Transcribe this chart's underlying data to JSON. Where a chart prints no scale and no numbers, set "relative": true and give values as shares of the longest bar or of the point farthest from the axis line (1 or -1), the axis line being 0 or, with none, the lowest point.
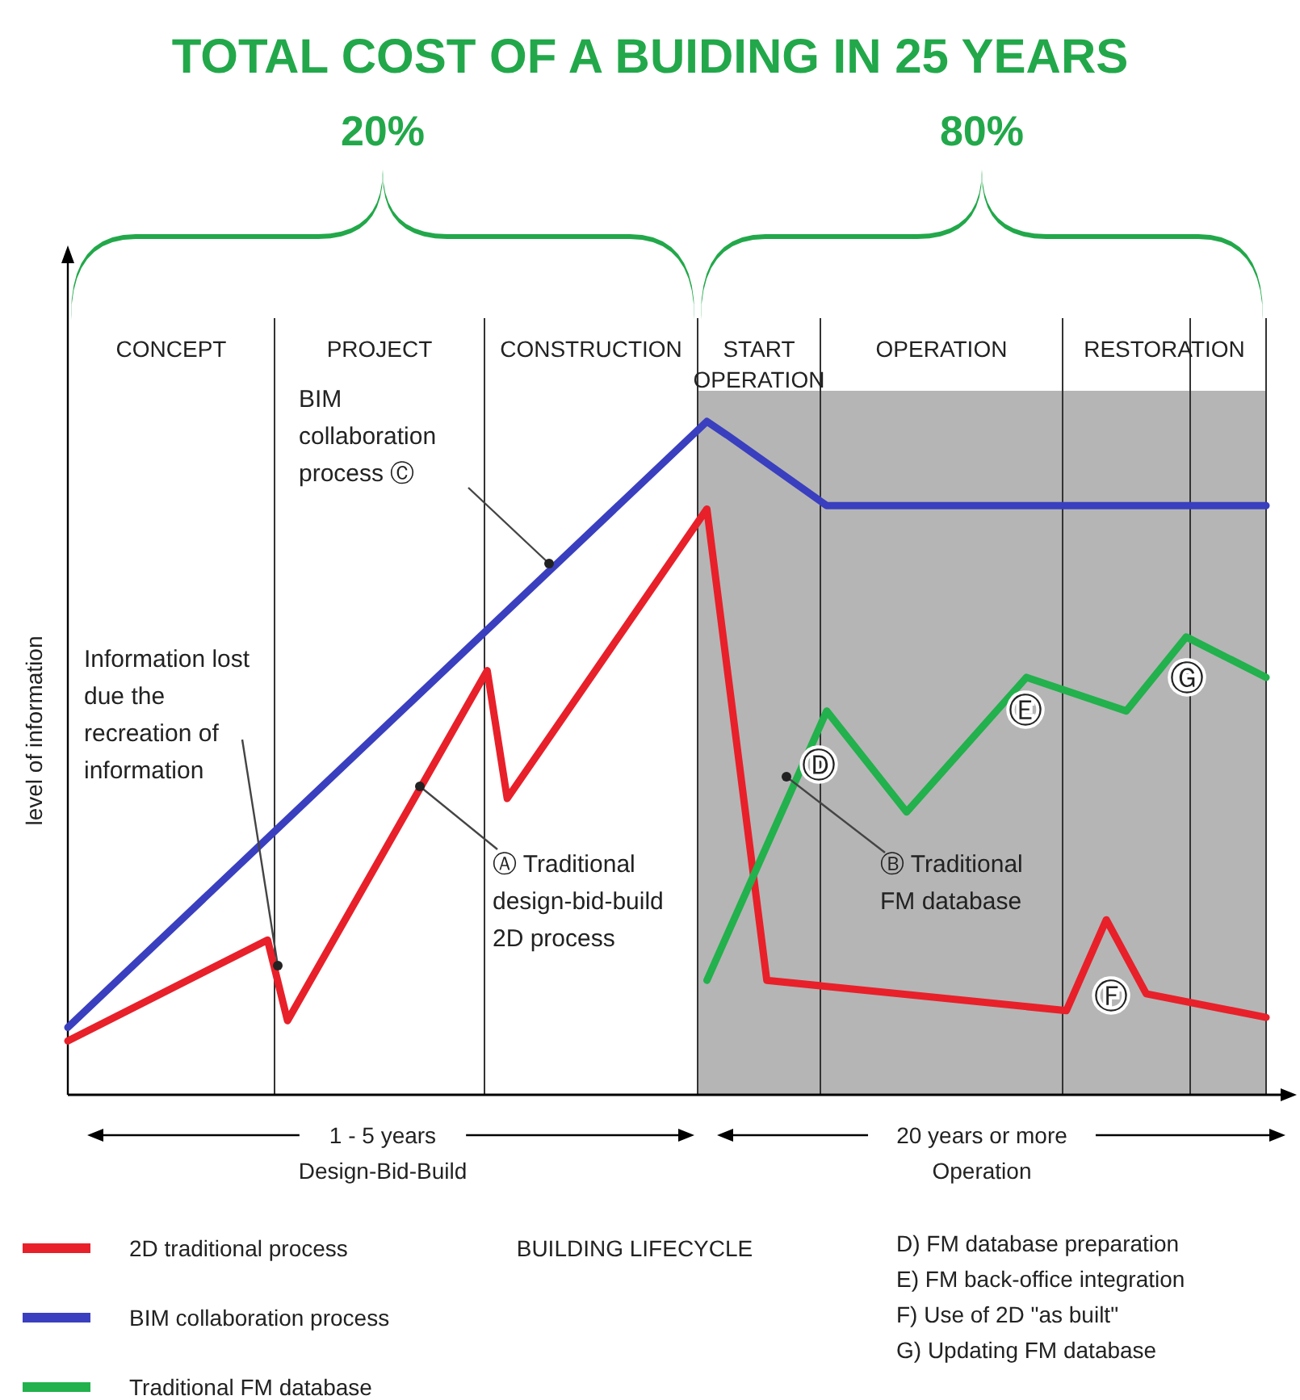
{
  "chart_data": {
    "type": "line",
    "title": "TOTAL COST OF A BUIDING IN 25 YEARS",
    "ylabel": "level of information",
    "relative": true,
    "legend": "bottom",
    "grid": "x",
    "categories": [
      null,
      null,
      null,
      null,
      null,
      null,
      null,
      null,
      null,
      null,
      null,
      null,
      null,
      null,
      null,
      null,
      null,
      null,
      null,
      null,
      null,
      null,
      null,
      null,
      null,
      null,
      null,
      null,
      null,
      null,
      null,
      null,
      null,
      null,
      null,
      null,
      null,
      null,
      null,
      null,
      null,
      null,
      null,
      null,
      null,
      null,
      null,
      null,
      null,
      null,
      null,
      null,
      null,
      null,
      null,
      null,
      null,
      null,
      null,
      null,
      null
    ],
    "series": [
      {
        "name": "2D traditional process",
        "color": "#e8202a",
        "values": [
          0.08,
          null,
          null,
          null,
          null,
          null,
          null,
          null,
          null,
          null,
          0.23,
          0.11,
          null,
          null,
          null,
          null,
          null,
          null,
          null,
          null,
          null,
          0.63,
          0.44,
          null,
          null,
          null,
          null,
          null,
          null,
          null,
          null,
          null,
          0.87,
          null,
          null,
          0.17,
          null,
          null,
          null,
          null,
          null,
          null,
          null,
          null,
          null,
          null,
          null,
          null,
          null,
          null,
          0.125,
          null,
          0.26,
          null,
          0.15,
          null,
          null,
          null,
          null,
          null,
          0.115
        ]
      },
      {
        "name": "BIM collaboration process",
        "color": "#3a3fbf",
        "values": [
          0.1,
          null,
          null,
          null,
          null,
          null,
          null,
          null,
          null,
          null,
          null,
          null,
          null,
          null,
          null,
          null,
          null,
          null,
          null,
          null,
          null,
          null,
          null,
          null,
          null,
          null,
          null,
          null,
          null,
          null,
          null,
          null,
          1,
          0.98,
          null,
          null,
          null,
          null,
          0.875,
          null,
          null,
          null,
          null,
          null,
          null,
          null,
          null,
          null,
          null,
          null,
          null,
          null,
          null,
          null,
          null,
          null,
          null,
          null,
          null,
          null,
          0.875
        ]
      },
      {
        "name": "Traditional FM database",
        "color": "#22b14c",
        "values": [
          null,
          null,
          null,
          null,
          null,
          null,
          null,
          null,
          null,
          null,
          null,
          null,
          null,
          null,
          null,
          null,
          null,
          null,
          null,
          null,
          null,
          null,
          null,
          null,
          null,
          null,
          null,
          null,
          null,
          null,
          null,
          null,
          0.17,
          null,
          null,
          null,
          null,
          null,
          0.57,
          null,
          null,
          null,
          0.42,
          null,
          null,
          null,
          null,
          null,
          0.62,
          null,
          null,
          null,
          null,
          0.57,
          null,
          null,
          0.68,
          null,
          null,
          null,
          0.62
        ]
      }
    ],
    "annotations": [
      "20%",
      "80%",
      "CONCEPT",
      "PROJECT",
      "CONSTRUCTION",
      "START OPERATION",
      "OPERATION",
      "RESTORATION",
      "Information lost due the recreation of information",
      "Ⓐ Traditional design-bid-build 2D process",
      "BIM collaboration process Ⓒ",
      "Ⓑ Traditional FM database",
      "Ⓓ",
      "Ⓔ",
      "Ⓕ",
      "Ⓖ",
      "1 - 5 years Design-Bid-Build",
      "20 years or more Operation",
      "BUILDING LIFECYCLE",
      "D) FM database preparation",
      "E) FM back-office integration",
      "F) Use of 2D \"as built\"",
      "G) Updating FM database"
    ]
  }
}
